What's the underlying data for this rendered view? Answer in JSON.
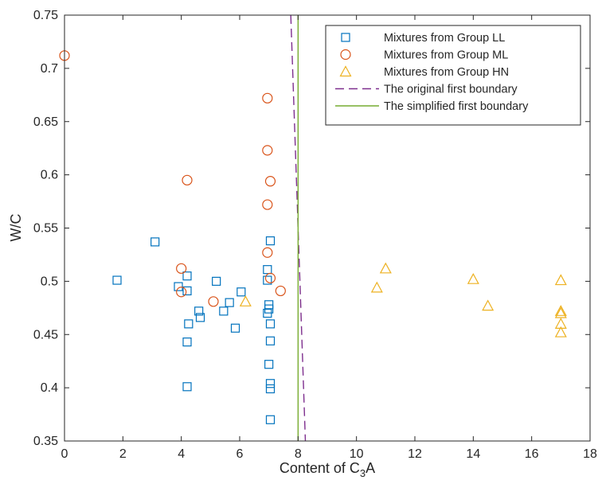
{
  "chart_data": {
    "type": "scatter",
    "xlabel": "Content of C3A",
    "xlabel_parts": {
      "pre": "Content of C",
      "sub": "3",
      "post": "A"
    },
    "ylabel": "W/C",
    "xlim": [
      0,
      18
    ],
    "ylim": [
      0.35,
      0.75
    ],
    "x_ticks": [
      0,
      2,
      4,
      6,
      8,
      10,
      12,
      14,
      16,
      18
    ],
    "y_ticks": [
      0.35,
      0.4,
      0.45,
      0.5,
      0.55,
      0.6,
      0.65,
      0.7,
      0.75
    ],
    "x_tick_labels": [
      "0",
      "2",
      "4",
      "6",
      "8",
      "10",
      "12",
      "14",
      "16",
      "18"
    ],
    "y_tick_labels": [
      "0.35",
      "0.4",
      "0.45",
      "0.5",
      "0.55",
      "0.6",
      "0.65",
      "0.7",
      "0.75"
    ],
    "grid": false,
    "legend_position": "top-right",
    "series": [
      {
        "name": "Mixtures from Group LL",
        "marker": "square",
        "color": "#0072BD",
        "points": [
          [
            1.8,
            0.501
          ],
          [
            3.1,
            0.537
          ],
          [
            3.9,
            0.495
          ],
          [
            4.2,
            0.491
          ],
          [
            4.2,
            0.505
          ],
          [
            4.25,
            0.46
          ],
          [
            4.2,
            0.443
          ],
          [
            4.2,
            0.401
          ],
          [
            4.6,
            0.472
          ],
          [
            4.65,
            0.466
          ],
          [
            5.2,
            0.5
          ],
          [
            5.45,
            0.472
          ],
          [
            5.65,
            0.48
          ],
          [
            5.85,
            0.456
          ],
          [
            6.05,
            0.49
          ],
          [
            6.95,
            0.511
          ],
          [
            6.95,
            0.501
          ],
          [
            7.0,
            0.478
          ],
          [
            7.0,
            0.474
          ],
          [
            6.95,
            0.47
          ],
          [
            7.05,
            0.538
          ],
          [
            7.05,
            0.46
          ],
          [
            7.05,
            0.444
          ],
          [
            7.0,
            0.422
          ],
          [
            7.05,
            0.404
          ],
          [
            7.05,
            0.399
          ],
          [
            7.05,
            0.37
          ]
        ]
      },
      {
        "name": "Mixtures from Group ML",
        "marker": "circle",
        "color": "#D95319",
        "points": [
          [
            0.0,
            0.712
          ],
          [
            4.2,
            0.595
          ],
          [
            4.0,
            0.512
          ],
          [
            4.0,
            0.49
          ],
          [
            5.1,
            0.481
          ],
          [
            6.95,
            0.672
          ],
          [
            6.95,
            0.623
          ],
          [
            7.05,
            0.594
          ],
          [
            6.95,
            0.572
          ],
          [
            6.95,
            0.527
          ],
          [
            7.05,
            0.503
          ],
          [
            7.4,
            0.491
          ]
        ]
      },
      {
        "name": "Mixtures from Group HN",
        "marker": "triangle",
        "color": "#EDB120",
        "points": [
          [
            6.2,
            0.481
          ],
          [
            10.7,
            0.494
          ],
          [
            11.0,
            0.512
          ],
          [
            14.0,
            0.502
          ],
          [
            14.5,
            0.477
          ],
          [
            17.0,
            0.501
          ],
          [
            17.0,
            0.472
          ],
          [
            17.0,
            0.47
          ],
          [
            17.0,
            0.46
          ],
          [
            17.0,
            0.452
          ]
        ]
      }
    ],
    "lines": [
      {
        "name": "The original first boundary",
        "style": "dashed",
        "color": "#7E2F8E",
        "points": [
          [
            7.75,
            0.75
          ],
          [
            8.25,
            0.35
          ]
        ]
      },
      {
        "name": "The simplified first boundary",
        "style": "solid",
        "color": "#77AC30",
        "points": [
          [
            8.0,
            0.75
          ],
          [
            8.0,
            0.35
          ]
        ]
      }
    ]
  }
}
